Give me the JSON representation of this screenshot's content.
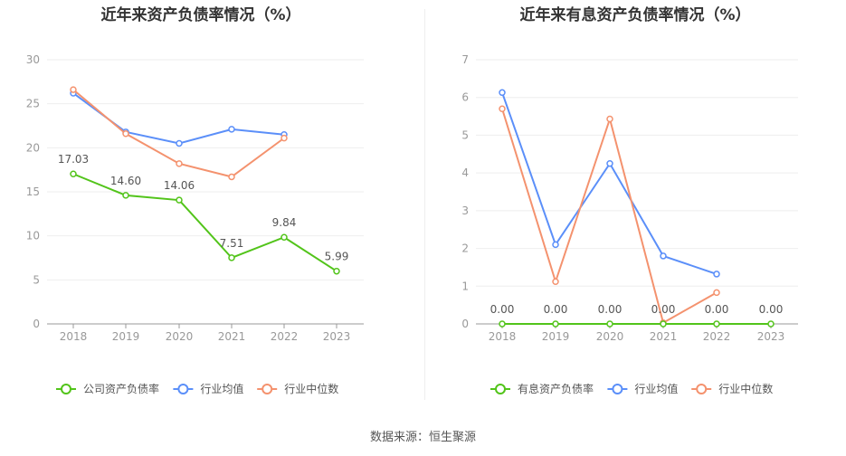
{
  "source_text": "数据来源：恒生聚源",
  "chart_data": [
    {
      "type": "line",
      "title": "近年来资产负债率情况（%）",
      "categories": [
        "2018",
        "2019",
        "2020",
        "2021",
        "2022",
        "2023"
      ],
      "ylim": [
        0,
        30
      ],
      "yticks": [
        0,
        5,
        10,
        15,
        20,
        25,
        30
      ],
      "grid": true,
      "legend_position": "bottom",
      "series": [
        {
          "name": "公司资产负债率",
          "color": "#52c41a",
          "values": [
            17.03,
            14.6,
            14.06,
            7.51,
            9.84,
            5.99
          ],
          "labels": [
            "17.03",
            "14.60",
            "14.06",
            "7.51",
            "9.84",
            "5.99"
          ]
        },
        {
          "name": "行业均值",
          "color": "#5b8ff9",
          "values": [
            26.2,
            21.8,
            20.5,
            22.1,
            21.5,
            null
          ]
        },
        {
          "name": "行业中位数",
          "color": "#f4926e",
          "values": [
            26.6,
            21.6,
            18.2,
            16.7,
            21.1,
            null
          ]
        }
      ]
    },
    {
      "type": "line",
      "title": "近年来有息资产负债率情况（%）",
      "categories": [
        "2018",
        "2019",
        "2020",
        "2021",
        "2022",
        "2023"
      ],
      "ylim": [
        0,
        7
      ],
      "yticks": [
        0,
        1,
        2,
        3,
        4,
        5,
        6,
        7
      ],
      "grid": true,
      "legend_position": "bottom",
      "series": [
        {
          "name": "有息资产负债率",
          "color": "#52c41a",
          "values": [
            0,
            0,
            0,
            0,
            0,
            0
          ],
          "labels": [
            "0.00",
            "0.00",
            "0.00",
            "0.00",
            "0.00",
            "0.00"
          ]
        },
        {
          "name": "行业均值",
          "color": "#5b8ff9",
          "values": [
            6.13,
            2.1,
            4.25,
            1.8,
            1.32,
            null
          ]
        },
        {
          "name": "行业中位数",
          "color": "#f4926e",
          "values": [
            5.7,
            1.12,
            5.43,
            0.03,
            0.83,
            null
          ]
        }
      ]
    }
  ]
}
